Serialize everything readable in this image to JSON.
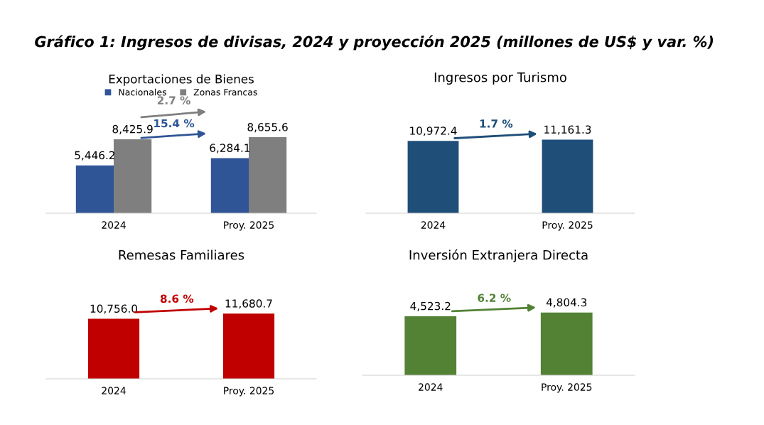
{
  "chart_data": [
    {
      "type": "bar",
      "title": "Gráfico 1: Ingresos de divisas, 2024 y proyección 2025 (millones de US$ y var. %)",
      "subtitle": "Exportaciones de Bienes",
      "categories": [
        "2024",
        "Proy. 2025"
      ],
      "series": [
        {
          "name": "Nacionales",
          "color": "#2f5597",
          "values": [
            5446.2,
            6284.1
          ],
          "value_labels": [
            "5,446.2",
            "6,284.1"
          ]
        },
        {
          "name": "Zonas Francas",
          "color": "#7f7f7f",
          "values": [
            8425.9,
            8655.6
          ],
          "value_labels": [
            "8,425.9",
            "8,655.6"
          ]
        }
      ],
      "annotations": [
        "15.4 %",
        "2.7 %"
      ],
      "legend": "top",
      "grid": false
    },
    {
      "type": "bar",
      "title": "Ingresos por Turismo",
      "categories": [
        "2024",
        "Proy. 2025"
      ],
      "series": [
        {
          "color": "#1f4e79",
          "values": [
            10972.4,
            11161.3
          ],
          "value_labels": [
            "10,972.4",
            "11,161.3"
          ]
        }
      ],
      "annotations": [
        "1.7 %"
      ],
      "grid": false
    },
    {
      "type": "bar",
      "title": "Remesas Familiares",
      "categories": [
        "2024",
        "Proy. 2025"
      ],
      "series": [
        {
          "color": "#c00000",
          "values": [
            10756.0,
            11680.7
          ],
          "value_labels": [
            "10,756.0",
            "11,680.7"
          ]
        }
      ],
      "annotations": [
        "8.6 %"
      ],
      "grid": false
    },
    {
      "type": "bar",
      "title": "Inversión Extranjera Directa",
      "categories": [
        "2024",
        "Proy. 2025"
      ],
      "series": [
        {
          "color": "#548235",
          "values": [
            4523.2,
            4804.3
          ],
          "value_labels": [
            "4,523.2",
            "4,804.3"
          ]
        }
      ],
      "annotations": [
        "6.2 %"
      ],
      "grid": false
    }
  ]
}
